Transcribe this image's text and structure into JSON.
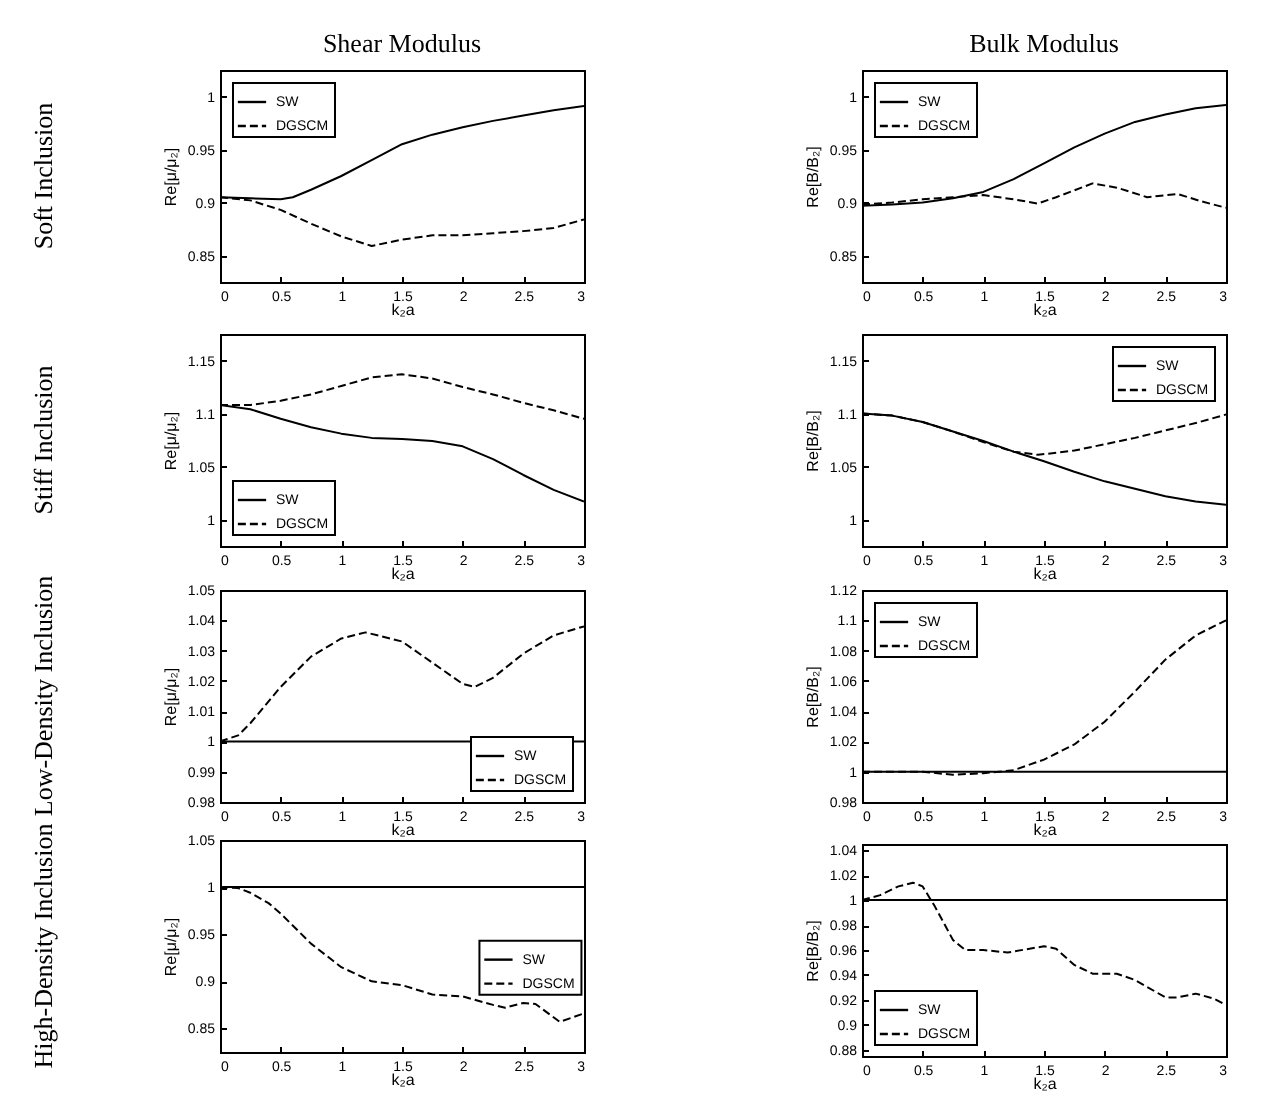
{
  "chart_data": [
    {
      "type": "line",
      "title": "Shear Modulus",
      "annotations": [
        "Soft Inclusion"
      ],
      "xlabel": "k₂a",
      "ylabel": "Re[μ/μ₂]",
      "xlim": [
        0,
        3
      ],
      "xticks": [
        0,
        0.5,
        1,
        1.5,
        2,
        2.5,
        3
      ],
      "ylim": [
        0.825,
        1.025
      ],
      "yticks": [
        0.85,
        0.9,
        0.95,
        1
      ],
      "grid": false,
      "legend": "top left",
      "series": [
        {
          "name": "SW",
          "color": "#000000",
          "line_style": "solid",
          "x": [
            0,
            0.25,
            0.5,
            0.6,
            0.75,
            1,
            1.25,
            1.5,
            1.75,
            2,
            2.25,
            2.5,
            2.75,
            3
          ],
          "values": [
            0.905,
            0.904,
            0.903,
            0.905,
            0.912,
            0.925,
            0.94,
            0.955,
            0.964,
            0.971,
            0.977,
            0.982,
            0.987,
            0.991
          ]
        },
        {
          "name": "DGSCM",
          "color": "#000000",
          "line_style": "dashed",
          "x": [
            0,
            0.25,
            0.5,
            0.75,
            1,
            1.25,
            1.5,
            1.75,
            2,
            2.25,
            2.5,
            2.75,
            3
          ],
          "values": [
            0.905,
            0.902,
            0.893,
            0.88,
            0.868,
            0.859,
            0.865,
            0.869,
            0.869,
            0.871,
            0.873,
            0.876,
            0.884
          ]
        }
      ]
    },
    {
      "type": "line",
      "title": "Bulk Modulus",
      "xlabel": "k₂a",
      "ylabel": "Re[B/B₂]",
      "xlim": [
        0,
        3
      ],
      "xticks": [
        0,
        0.5,
        1,
        1.5,
        2,
        2.5,
        3
      ],
      "ylim": [
        0.825,
        1.025
      ],
      "yticks": [
        0.85,
        0.9,
        0.95,
        1
      ],
      "grid": false,
      "legend": "top left",
      "series": [
        {
          "name": "SW",
          "color": "#000000",
          "line_style": "solid",
          "x": [
            0,
            0.25,
            0.5,
            0.75,
            1,
            1.25,
            1.5,
            1.75,
            2,
            2.25,
            2.5,
            2.75,
            3
          ],
          "values": [
            0.897,
            0.898,
            0.9,
            0.904,
            0.91,
            0.922,
            0.937,
            0.952,
            0.965,
            0.976,
            0.983,
            0.989,
            0.992
          ]
        },
        {
          "name": "DGSCM",
          "color": "#000000",
          "line_style": "dashed",
          "x": [
            0,
            0.25,
            0.5,
            0.75,
            1,
            1.25,
            1.45,
            1.6,
            1.9,
            2.1,
            2.35,
            2.6,
            2.8,
            3
          ],
          "values": [
            0.898,
            0.9,
            0.903,
            0.905,
            0.907,
            0.903,
            0.899,
            0.905,
            0.918,
            0.914,
            0.905,
            0.908,
            0.901,
            0.895
          ]
        }
      ]
    },
    {
      "type": "line",
      "annotations": [
        "Stiff Inclusion"
      ],
      "xlabel": "k₂a",
      "ylabel": "Re[μ/μ₂]",
      "xlim": [
        0,
        3
      ],
      "xticks": [
        0,
        0.5,
        1,
        1.5,
        2,
        2.5,
        3
      ],
      "ylim": [
        0.975,
        1.175
      ],
      "yticks": [
        1,
        1.05,
        1.1,
        1.15
      ],
      "grid": false,
      "legend": "bottom left",
      "series": [
        {
          "name": "SW",
          "color": "#000000",
          "line_style": "solid",
          "x": [
            0,
            0.25,
            0.5,
            0.75,
            1,
            1.25,
            1.5,
            1.75,
            2,
            2.25,
            2.5,
            2.75,
            3
          ],
          "values": [
            1.108,
            1.104,
            1.095,
            1.087,
            1.081,
            1.077,
            1.076,
            1.074,
            1.069,
            1.057,
            1.042,
            1.028,
            1.017
          ]
        },
        {
          "name": "DGSCM",
          "color": "#000000",
          "line_style": "dashed",
          "x": [
            0,
            0.25,
            0.5,
            0.75,
            1,
            1.25,
            1.5,
            1.75,
            2,
            2.25,
            2.5,
            2.75,
            3
          ],
          "values": [
            1.108,
            1.108,
            1.112,
            1.118,
            1.126,
            1.134,
            1.137,
            1.133,
            1.125,
            1.118,
            1.11,
            1.103,
            1.095
          ]
        }
      ]
    },
    {
      "type": "line",
      "xlabel": "k₂a",
      "ylabel": "Re[B/B₂]",
      "xlim": [
        0,
        3
      ],
      "xticks": [
        0,
        0.5,
        1,
        1.5,
        2,
        2.5,
        3
      ],
      "ylim": [
        0.975,
        1.175
      ],
      "yticks": [
        1,
        1.05,
        1.1,
        1.15
      ],
      "grid": false,
      "legend": "top right",
      "series": [
        {
          "name": "SW",
          "color": "#000000",
          "line_style": "solid",
          "x": [
            0,
            0.25,
            0.5,
            0.75,
            1,
            1.25,
            1.5,
            1.75,
            2,
            2.25,
            2.5,
            2.75,
            3
          ],
          "values": [
            1.1,
            1.098,
            1.092,
            1.083,
            1.074,
            1.064,
            1.055,
            1.045,
            1.036,
            1.029,
            1.022,
            1.017,
            1.014
          ]
        },
        {
          "name": "DGSCM",
          "color": "#000000",
          "line_style": "dashed",
          "x": [
            0,
            0.25,
            0.5,
            0.75,
            1,
            1.25,
            1.45,
            1.75,
            2,
            2.25,
            2.5,
            2.75,
            3
          ],
          "values": [
            1.1,
            1.098,
            1.092,
            1.083,
            1.073,
            1.064,
            1.061,
            1.065,
            1.071,
            1.077,
            1.084,
            1.091,
            1.099
          ]
        }
      ]
    },
    {
      "type": "line",
      "annotations": [
        "Low-Density Inclusion"
      ],
      "xlabel": "k₂a",
      "ylabel": "Re[μ/μ₂]",
      "xlim": [
        0,
        3
      ],
      "xticks": [
        0,
        0.5,
        1,
        1.5,
        2,
        2.5,
        3
      ],
      "ylim": [
        0.98,
        1.05
      ],
      "yticks": [
        0.98,
        0.99,
        1,
        1.01,
        1.02,
        1.03,
        1.04,
        1.05
      ],
      "grid": false,
      "legend": "bottom right",
      "series": [
        {
          "name": "SW",
          "color": "#000000",
          "line_style": "solid",
          "x": [
            0,
            3
          ],
          "values": [
            1,
            1
          ]
        },
        {
          "name": "DGSCM",
          "color": "#000000",
          "line_style": "dashed",
          "x": [
            0,
            0.15,
            0.25,
            0.5,
            0.75,
            1,
            1.2,
            1.5,
            1.75,
            2,
            2.1,
            2.25,
            2.5,
            2.75,
            3
          ],
          "values": [
            1.0,
            1.002,
            1.006,
            1.018,
            1.028,
            1.034,
            1.036,
            1.033,
            1.026,
            1.019,
            1.018,
            1.021,
            1.029,
            1.035,
            1.038
          ]
        }
      ]
    },
    {
      "type": "line",
      "xlabel": "k₂a",
      "ylabel": "Re[B/B₂]",
      "xlim": [
        0,
        3
      ],
      "xticks": [
        0,
        0.5,
        1,
        1.5,
        2,
        2.5,
        3
      ],
      "ylim": [
        0.98,
        1.12
      ],
      "yticks": [
        0.98,
        1,
        1.02,
        1.04,
        1.06,
        1.08,
        1.1,
        1.12
      ],
      "grid": false,
      "legend": "top left",
      "series": [
        {
          "name": "SW",
          "color": "#000000",
          "line_style": "solid",
          "x": [
            0,
            3
          ],
          "values": [
            1,
            1
          ]
        },
        {
          "name": "DGSCM",
          "color": "#000000",
          "line_style": "dashed",
          "x": [
            0,
            0.5,
            0.75,
            1,
            1.25,
            1.5,
            1.75,
            2,
            2.25,
            2.5,
            2.75,
            3
          ],
          "values": [
            1.0,
            1.0,
            0.998,
            0.999,
            1.001,
            1.008,
            1.018,
            1.033,
            1.053,
            1.074,
            1.09,
            1.1
          ]
        }
      ]
    },
    {
      "type": "line",
      "annotations": [
        "High-Density Inclusion"
      ],
      "xlabel": "k₂a",
      "ylabel": "Re[μ/μ₂]",
      "xlim": [
        0,
        3
      ],
      "xticks": [
        0,
        0.5,
        1,
        1.5,
        2,
        2.5,
        3
      ],
      "ylim": [
        0.825,
        1.05
      ],
      "yticks": [
        0.85,
        0.9,
        0.95,
        1,
        1.05
      ],
      "grid": false,
      "legend": "right",
      "series": [
        {
          "name": "SW",
          "color": "#000000",
          "line_style": "solid",
          "x": [
            0,
            3
          ],
          "values": [
            1,
            1
          ]
        },
        {
          "name": "DGSCM",
          "color": "#000000",
          "line_style": "dashed",
          "x": [
            0,
            0.15,
            0.25,
            0.4,
            0.5,
            0.75,
            1,
            1.25,
            1.5,
            1.75,
            2,
            2.25,
            2.35,
            2.5,
            2.6,
            2.8,
            3
          ],
          "values": [
            1.0,
            0.999,
            0.994,
            0.983,
            0.972,
            0.94,
            0.915,
            0.9,
            0.896,
            0.886,
            0.884,
            0.875,
            0.872,
            0.877,
            0.876,
            0.857,
            0.866
          ]
        }
      ]
    },
    {
      "type": "line",
      "xlabel": "k₂a",
      "ylabel": "Re[B/B₂]",
      "xlim": [
        0,
        3
      ],
      "xticks": [
        0,
        0.5,
        1,
        1.5,
        2,
        2.5,
        3
      ],
      "ylim": [
        0.875,
        1.045
      ],
      "yticks": [
        0.88,
        0.9,
        0.92,
        0.94,
        0.96,
        0.98,
        1,
        1.02,
        1.04
      ],
      "grid": false,
      "legend": "bottom left",
      "series": [
        {
          "name": "SW",
          "color": "#000000",
          "line_style": "solid",
          "x": [
            0,
            3
          ],
          "values": [
            1,
            1
          ]
        },
        {
          "name": "DGSCM",
          "color": "#000000",
          "line_style": "dashed",
          "x": [
            0,
            0.15,
            0.3,
            0.42,
            0.5,
            0.6,
            0.75,
            0.85,
            1,
            1.2,
            1.5,
            1.6,
            1.75,
            1.9,
            2.1,
            2.25,
            2.5,
            2.6,
            2.75,
            2.9,
            3
          ],
          "values": [
            1.0,
            1.004,
            1.011,
            1.014,
            1.011,
            0.995,
            0.968,
            0.96,
            0.96,
            0.958,
            0.963,
            0.961,
            0.948,
            0.941,
            0.941,
            0.936,
            0.922,
            0.922,
            0.925,
            0.921,
            0.916
          ]
        }
      ]
    }
  ]
}
